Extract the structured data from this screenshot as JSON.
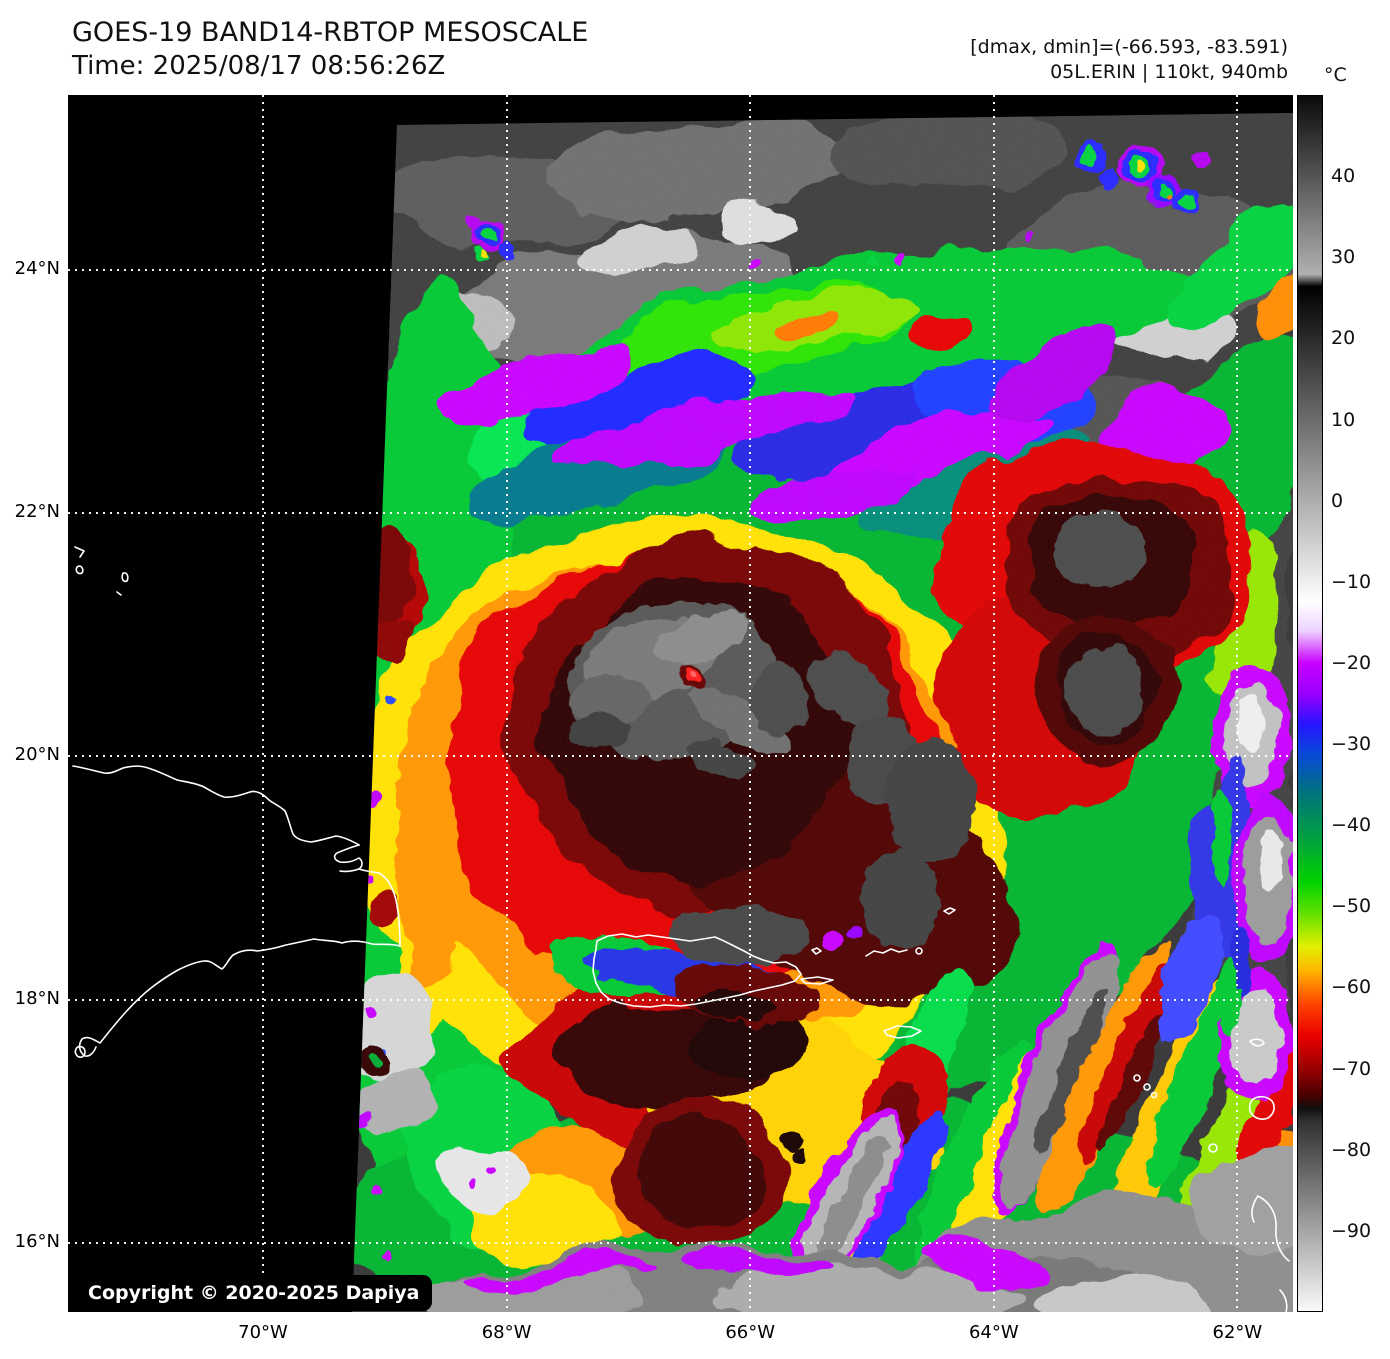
{
  "header": {
    "title": "GOES-19 BAND14-RBTOP MESOSCALE",
    "time_line": "Time: 2025/08/17 08:56:26Z"
  },
  "info": {
    "range_line": "[dmax, dmin]=(-66.593, -83.591)",
    "storm_line": "05L.ERIN | 110kt, 940mb"
  },
  "colorbar": {
    "unit_label": "°C",
    "vmax": 50,
    "vmin": -100,
    "tick_labels": [
      "40",
      "30",
      "20",
      "10",
      "0",
      "−10",
      "−20",
      "−30",
      "−40",
      "−50",
      "−60",
      "−70",
      "−80",
      "−90"
    ],
    "tick_values": [
      40,
      30,
      20,
      10,
      0,
      -10,
      -20,
      -30,
      -40,
      -50,
      -60,
      -70,
      -80,
      -90
    ],
    "stops": [
      {
        "v": 50,
        "c": "#0a0a0a"
      },
      {
        "v": 28,
        "c": "#b0b0b0"
      },
      {
        "v": 26.5,
        "c": "#000000"
      },
      {
        "v": -12.5,
        "c": "#ffffff"
      },
      {
        "v": -16,
        "c": "#eed2ff"
      },
      {
        "v": -20,
        "c": "#c800ff"
      },
      {
        "v": -24,
        "c": "#9600ff"
      },
      {
        "v": -27.5,
        "c": "#2814ff"
      },
      {
        "v": -31,
        "c": "#0a46dc"
      },
      {
        "v": -36,
        "c": "#00737d"
      },
      {
        "v": -41,
        "c": "#009b46"
      },
      {
        "v": -47,
        "c": "#00d200"
      },
      {
        "v": -51,
        "c": "#64e100"
      },
      {
        "v": -55,
        "c": "#e1ef00"
      },
      {
        "v": -58,
        "c": "#ffb400"
      },
      {
        "v": -62,
        "c": "#ff4600"
      },
      {
        "v": -66,
        "c": "#eb0000"
      },
      {
        "v": -70,
        "c": "#9b0000"
      },
      {
        "v": -73.5,
        "c": "#460000"
      },
      {
        "v": -75,
        "c": "#0f0f0f"
      },
      {
        "v": -76.5,
        "c": "#303030"
      },
      {
        "v": -100,
        "c": "#fafafa"
      }
    ]
  },
  "axes": {
    "lat_ticks": [
      {
        "label": "24°N",
        "value": 24
      },
      {
        "label": "22°N",
        "value": 22
      },
      {
        "label": "20°N",
        "value": 20
      },
      {
        "label": "18°N",
        "value": 18
      },
      {
        "label": "16°N",
        "value": 16
      }
    ],
    "lon_ticks": [
      {
        "label": "70°W",
        "value": -70
      },
      {
        "label": "68°W",
        "value": -68
      },
      {
        "label": "66°W",
        "value": -66
      },
      {
        "label": "64°W",
        "value": -64
      },
      {
        "label": "62°W",
        "value": -62
      }
    ]
  },
  "map_overlay": {
    "copyright": "Copyright © 2020-2025 Dapiya"
  },
  "chart_data": {
    "type": "heatmap",
    "title": "GOES-19 BAND14-RBTOP MESOSCALE",
    "time_utc": "2025/08/17 08:56:26Z",
    "storm": {
      "id_name": "05L.ERIN",
      "intensity": "110kt",
      "pressure": "940mb"
    },
    "dmax_c": -66.593,
    "dmin_c": -83.591,
    "colorbar_unit": "°C",
    "colorbar_ticks": [
      40,
      30,
      20,
      10,
      0,
      -10,
      -20,
      -30,
      -40,
      -50,
      -60,
      -70,
      -80,
      -90
    ],
    "colorbar_range": [
      -100,
      50
    ],
    "lat_gridlines_deg_n": [
      24,
      22,
      20,
      18,
      16
    ],
    "lon_gridlines_deg_w": [
      70,
      68,
      66,
      64,
      62
    ],
    "legend_position": "right",
    "grid": "dotted-white"
  }
}
